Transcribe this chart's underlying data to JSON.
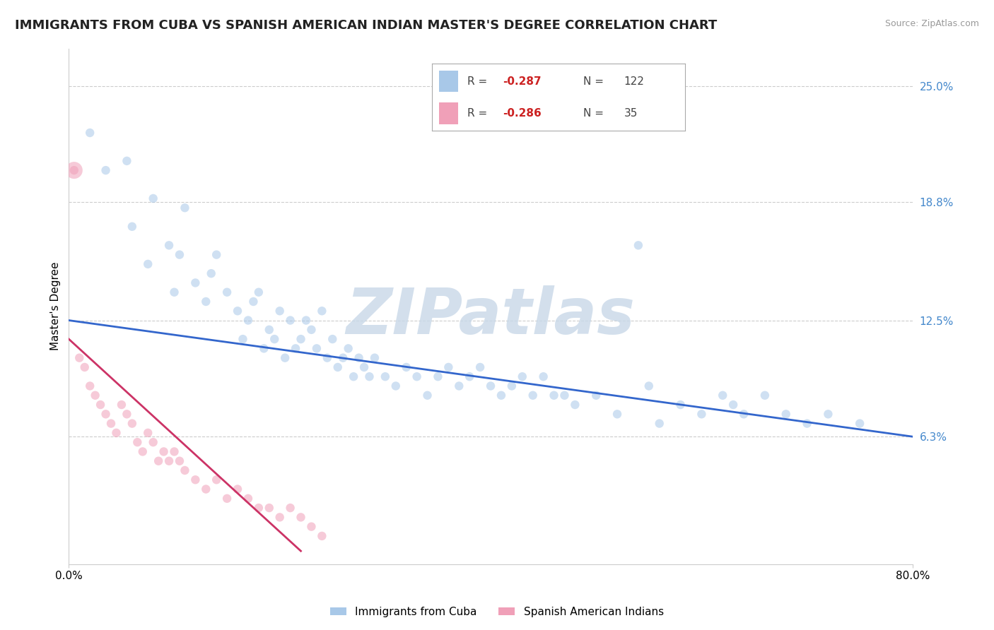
{
  "title": "IMMIGRANTS FROM CUBA VS SPANISH AMERICAN INDIAN MASTER'S DEGREE CORRELATION CHART",
  "source": "Source: ZipAtlas.com",
  "ylabel": "Master's Degree",
  "xlim": [
    0.0,
    80.0
  ],
  "ylim": [
    -0.5,
    27.0
  ],
  "x_tick_vals": [
    0.0,
    80.0
  ],
  "x_tick_labels": [
    "0.0%",
    "80.0%"
  ],
  "y_tick_vals_right": [
    6.3,
    12.5,
    18.8,
    25.0
  ],
  "y_tick_labels_right": [
    "6.3%",
    "12.5%",
    "18.8%",
    "25.0%"
  ],
  "blue_color": "#a8c8e8",
  "pink_color": "#f0a0b8",
  "blue_line_color": "#3366cc",
  "pink_line_color": "#cc3366",
  "right_label_color": "#4488cc",
  "grid_color": "#cccccc",
  "watermark": "ZIPatlas",
  "watermark_color": "#c8d8e8",
  "background_color": "#ffffff",
  "legend_R_blue": "-0.287",
  "legend_N_blue": "122",
  "legend_R_pink": "-0.286",
  "legend_N_pink": "35",
  "legend_label_blue": "Immigrants from Cuba",
  "legend_label_pink": "Spanish American Indians",
  "blue_scatter_x": [
    2.0,
    3.5,
    5.5,
    6.0,
    7.5,
    8.0,
    9.5,
    10.0,
    10.5,
    11.0,
    12.0,
    13.0,
    13.5,
    14.0,
    15.0,
    16.0,
    16.5,
    17.0,
    17.5,
    18.0,
    18.5,
    19.0,
    19.5,
    20.0,
    20.5,
    21.0,
    21.5,
    22.0,
    22.5,
    23.0,
    23.5,
    24.0,
    24.5,
    25.0,
    25.5,
    26.0,
    26.5,
    27.0,
    27.5,
    28.0,
    28.5,
    29.0,
    30.0,
    31.0,
    32.0,
    33.0,
    34.0,
    35.0,
    36.0,
    37.0,
    38.0,
    39.0,
    40.0,
    41.0,
    42.0,
    43.0,
    44.0,
    45.0,
    46.0,
    47.0,
    48.0,
    50.0,
    52.0,
    54.0,
    55.0,
    56.0,
    58.0,
    60.0,
    62.0,
    63.0,
    64.0,
    66.0,
    68.0,
    70.0,
    72.0,
    75.0
  ],
  "blue_scatter_y": [
    22.5,
    20.5,
    21.0,
    17.5,
    15.5,
    19.0,
    16.5,
    14.0,
    16.0,
    18.5,
    14.5,
    13.5,
    15.0,
    16.0,
    14.0,
    13.0,
    11.5,
    12.5,
    13.5,
    14.0,
    11.0,
    12.0,
    11.5,
    13.0,
    10.5,
    12.5,
    11.0,
    11.5,
    12.5,
    12.0,
    11.0,
    13.0,
    10.5,
    11.5,
    10.0,
    10.5,
    11.0,
    9.5,
    10.5,
    10.0,
    9.5,
    10.5,
    9.5,
    9.0,
    10.0,
    9.5,
    8.5,
    9.5,
    10.0,
    9.0,
    9.5,
    10.0,
    9.0,
    8.5,
    9.0,
    9.5,
    8.5,
    9.5,
    8.5,
    8.5,
    8.0,
    8.5,
    7.5,
    16.5,
    9.0,
    7.0,
    8.0,
    7.5,
    8.5,
    8.0,
    7.5,
    8.5,
    7.5,
    7.0,
    7.5,
    7.0
  ],
  "pink_scatter_x": [
    0.5,
    1.0,
    1.5,
    2.0,
    2.5,
    3.0,
    3.5,
    4.0,
    4.5,
    5.0,
    5.5,
    6.0,
    6.5,
    7.0,
    7.5,
    8.0,
    8.5,
    9.0,
    9.5,
    10.0,
    10.5,
    11.0,
    12.0,
    13.0,
    14.0,
    15.0,
    16.0,
    17.0,
    18.0,
    19.0,
    20.0,
    21.0,
    22.0,
    23.0,
    24.0
  ],
  "pink_scatter_y": [
    20.5,
    10.5,
    10.0,
    9.0,
    8.5,
    8.0,
    7.5,
    7.0,
    6.5,
    8.0,
    7.5,
    7.0,
    6.0,
    5.5,
    6.5,
    6.0,
    5.0,
    5.5,
    5.0,
    5.5,
    5.0,
    4.5,
    4.0,
    3.5,
    4.0,
    3.0,
    3.5,
    3.0,
    2.5,
    2.5,
    2.0,
    2.5,
    2.0,
    1.5,
    1.0
  ],
  "pink_outlier_x": 0.5,
  "pink_outlier_y": 20.5,
  "pink_outlier_size": 300,
  "blue_line_x": [
    0.0,
    80.0
  ],
  "blue_line_y": [
    12.5,
    6.3
  ],
  "pink_line_x": [
    0.0,
    22.0
  ],
  "pink_line_y": [
    11.5,
    0.2
  ],
  "title_fontsize": 13,
  "tick_fontsize": 11,
  "ylabel_fontsize": 11,
  "source_fontsize": 9,
  "legend_fontsize": 11,
  "scatter_size_blue": 80,
  "scatter_size_pink": 80,
  "scatter_alpha": 0.55
}
